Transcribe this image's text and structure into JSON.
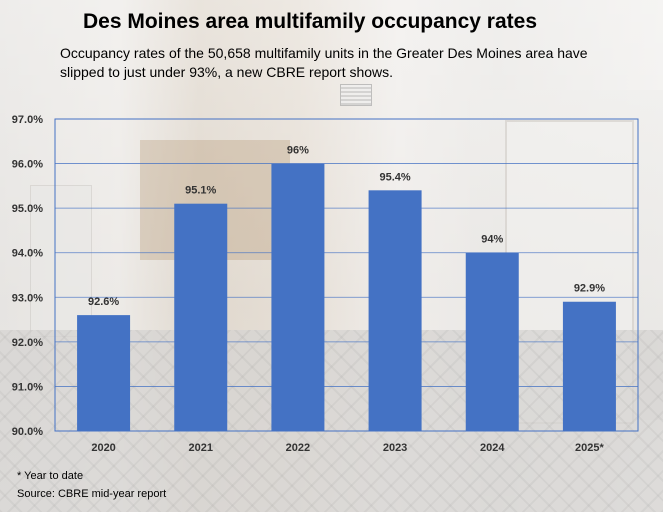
{
  "page": {
    "title": "Des Moines area multifamily occupancy rates",
    "subtitle": "Occupancy rates of the 50,658 multifamily units in the Greater Des Moines area have slipped to just under 93%, a new CBRE report shows.",
    "footnote_1": "* Year to date",
    "footnote_2": "Source: CBRE mid-year report"
  },
  "chart_data": {
    "type": "bar",
    "categories": [
      "2020",
      "2021",
      "2022",
      "2023",
      "2024",
      "2025*"
    ],
    "values": [
      92.6,
      95.1,
      96,
      95.4,
      94,
      92.9
    ],
    "value_labels": [
      "92.6%",
      "95.1%",
      "96%",
      "95.4%",
      "94%",
      "92.9%"
    ],
    "ylim": [
      90,
      97
    ],
    "yticks": [
      90,
      91,
      92,
      93,
      94,
      95,
      96,
      97
    ],
    "ytick_labels": [
      "90.0%",
      "91.0%",
      "92.0%",
      "93.0%",
      "94.0%",
      "95.0%",
      "96.0%",
      "97.0%"
    ],
    "grid": true,
    "legend": "none",
    "colors": {
      "bar": "#4472c4",
      "grid": "#4472c4"
    }
  }
}
